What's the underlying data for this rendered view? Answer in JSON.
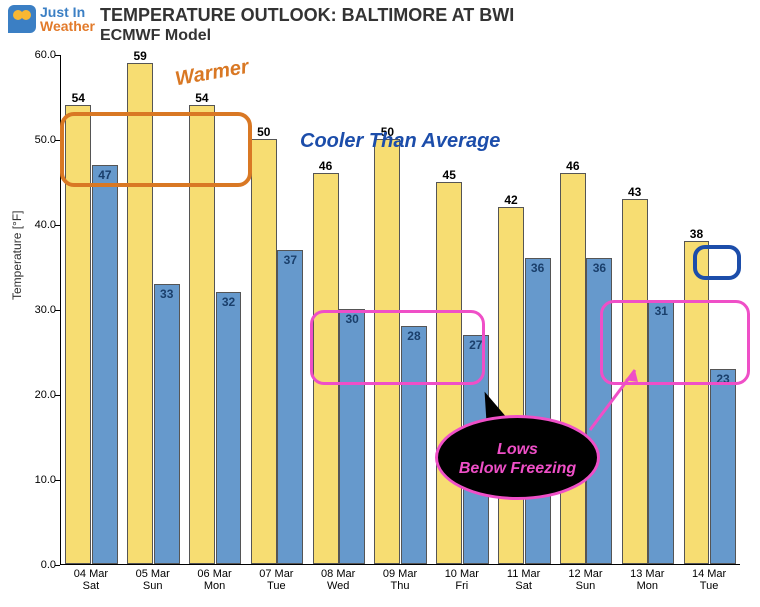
{
  "logo": {
    "line1": "Just In",
    "line2": "Weather"
  },
  "title": "TEMPERATURE OUTLOOK: BALTIMORE AT BWI",
  "subtitle": "ECMWF Model",
  "ylabel": "Temperature [°F]",
  "chart": {
    "type": "bar",
    "ylim": [
      0,
      60
    ],
    "ytick_step": 10,
    "yticks": [
      0.0,
      10.0,
      20.0,
      30.0,
      40.0,
      50.0,
      60.0
    ],
    "categories": [
      {
        "date": "04 Mar",
        "day": "Sat"
      },
      {
        "date": "05 Mar",
        "day": "Sun"
      },
      {
        "date": "06 Mar",
        "day": "Mon"
      },
      {
        "date": "07 Mar",
        "day": "Tue"
      },
      {
        "date": "08 Mar",
        "day": "Wed"
      },
      {
        "date": "09 Mar",
        "day": "Thu"
      },
      {
        "date": "10 Mar",
        "day": "Fri"
      },
      {
        "date": "11 Mar",
        "day": "Sat"
      },
      {
        "date": "12 Mar",
        "day": "Sun"
      },
      {
        "date": "13 Mar",
        "day": "Mon"
      },
      {
        "date": "14 Mar",
        "day": "Tue"
      }
    ],
    "highs": [
      54,
      59,
      54,
      50,
      46,
      50,
      45,
      42,
      46,
      43,
      38
    ],
    "lows": [
      47,
      33,
      32,
      37,
      30,
      28,
      27,
      36,
      36,
      31,
      23
    ],
    "colors": {
      "high_bar": "#f7dd72",
      "low_bar": "#6699cc",
      "high_label": "#000000",
      "low_label": "#1a3f6b",
      "axis": "#000000",
      "background": "#ffffff"
    },
    "bar_width_ratio": 0.42
  },
  "annotations": {
    "warmer": {
      "text": "Warmer",
      "color": "#d97824"
    },
    "cooler": {
      "text": "Cooler Than Average",
      "color": "#1c4daa"
    },
    "callout": {
      "line1": "Lows",
      "line2": "Below Freezing",
      "text_color": "#ef4fc7",
      "bg_color": "#000000",
      "border_color": "#ef4fc7"
    },
    "warmer_box_color": "#d97824",
    "blue_box_color": "#1c4daa",
    "pink_box_color": "#ef4fc7"
  }
}
